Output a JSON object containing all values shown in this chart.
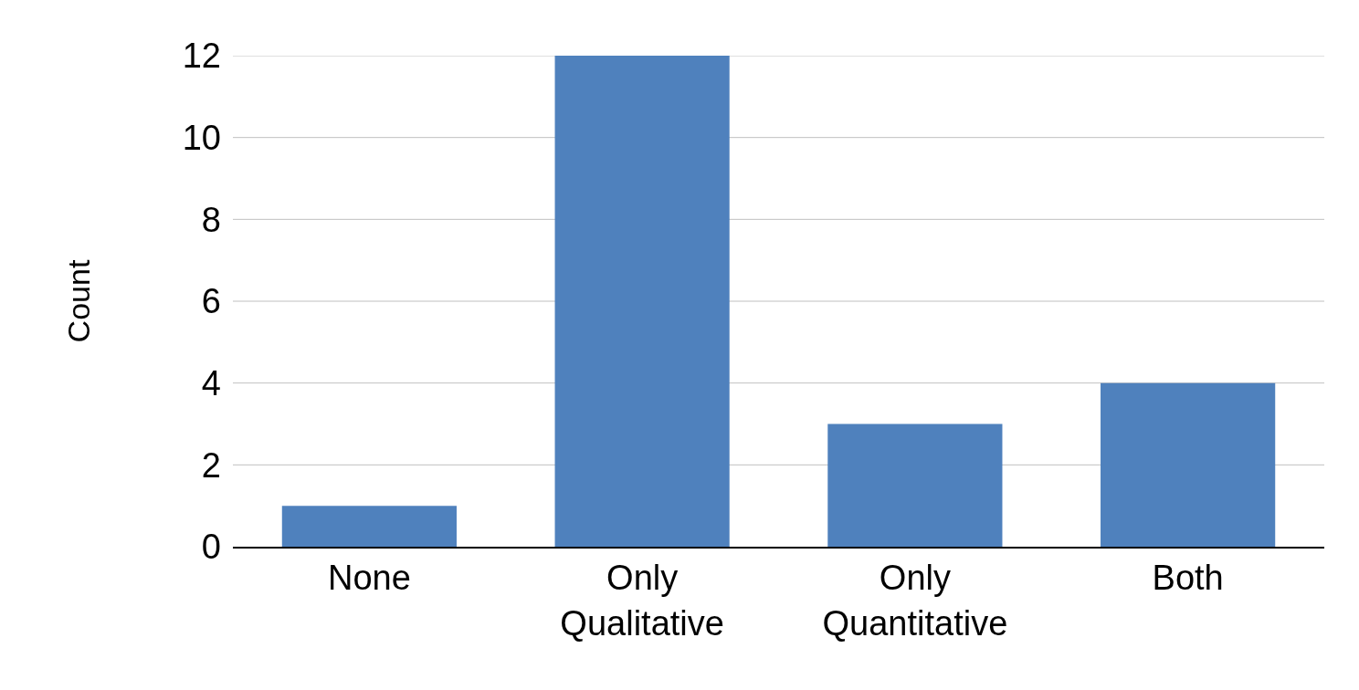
{
  "chart_data": {
    "type": "bar",
    "ylabel": "Count",
    "categories": [
      "None",
      "Only Qualitative",
      "Only Quantitative",
      "Both"
    ],
    "values": [
      1,
      12,
      3,
      4
    ],
    "color": "#4f81bd",
    "ylim": [
      0,
      12
    ],
    "yticks": [
      0,
      2,
      4,
      6,
      8,
      10,
      12
    ],
    "grid": "y"
  }
}
